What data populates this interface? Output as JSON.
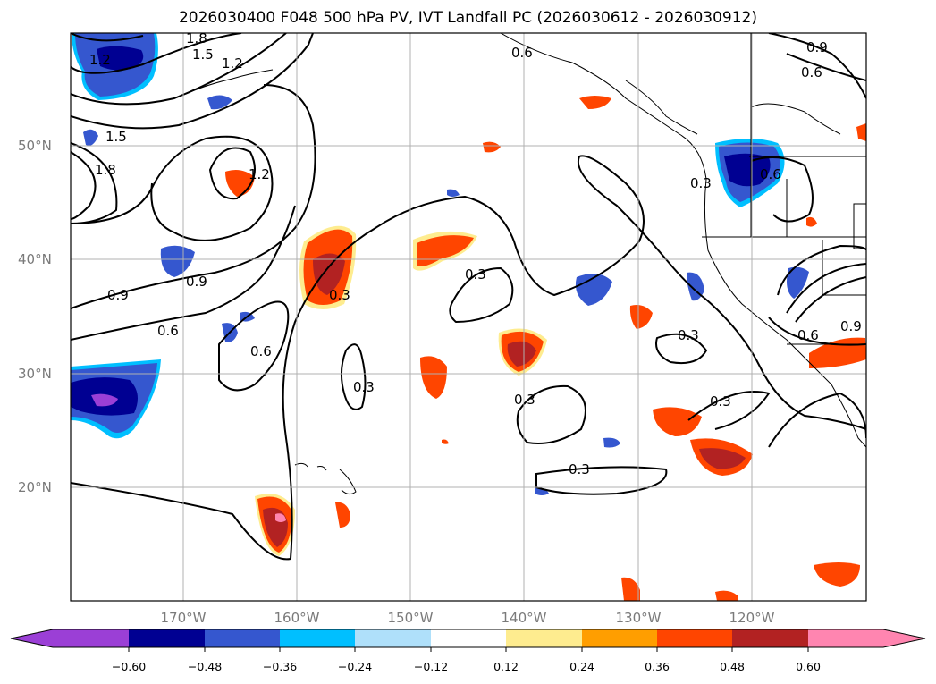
{
  "title": "2026030400 F048 500 hPa PV, IVT Landfall PC (2026030612 - 2026030912)",
  "map": {
    "latitude_labels": [
      "50°N",
      "40°N",
      "30°N",
      "20°N"
    ],
    "longitude_labels": [
      "170°W",
      "160°W",
      "150°W",
      "140°W",
      "130°W",
      "120°W"
    ],
    "gridlines": true,
    "contour_labels": [
      "1.8",
      "1.5",
      "1.2",
      "1.2",
      "1.5",
      "1.8",
      "1.2",
      "0.9",
      "0.9",
      "0.6",
      "0.6",
      "0.3",
      "0.3",
      "0.3",
      "0.3",
      "0.3",
      "0.3",
      "0.3",
      "0.6",
      "0.9",
      "0.6",
      "0.6",
      "0.3",
      "0.6",
      "0.9"
    ]
  },
  "colorbar": {
    "ticks": [
      "−0.60",
      "−0.48",
      "−0.36",
      "−0.24",
      "−0.12",
      "0.12",
      "0.24",
      "0.36",
      "0.48",
      "0.60"
    ],
    "colors": [
      "#9b3fd6",
      "#000092",
      "#3557cf",
      "#00bfff",
      "#afe0fa",
      "#ffffff",
      "#feec8f",
      "#ff9e00",
      "#ff4500",
      "#b22222",
      "#ff85b0"
    ],
    "extend": "both"
  }
}
